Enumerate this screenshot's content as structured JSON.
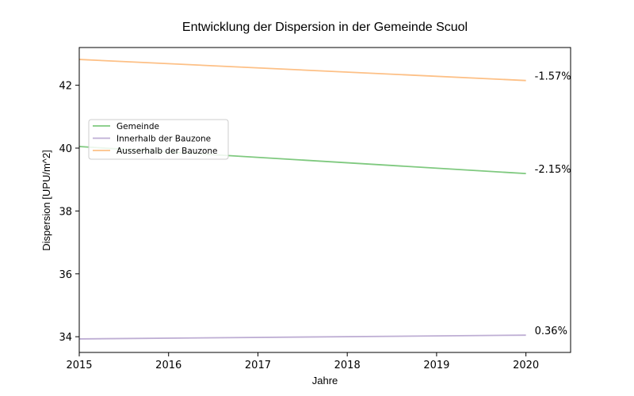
{
  "chart_data": {
    "type": "line",
    "title": "Entwicklung der Dispersion in der Gemeinde Scuol",
    "xlabel": "Jahre",
    "ylabel": "Dispersion [UPU/m^2]",
    "xlim": [
      2015,
      2020.5
    ],
    "ylim": [
      33.5,
      43.2
    ],
    "xticks": [
      2015,
      2016,
      2017,
      2018,
      2019,
      2020
    ],
    "yticks": [
      34,
      36,
      38,
      40,
      42
    ],
    "grid": false,
    "legend_position": "center-left",
    "x": [
      2015,
      2020
    ],
    "series": [
      {
        "name": "Gemeinde",
        "color": "#7fc97f",
        "values": [
          40.05,
          39.19
        ],
        "end_label": "-2.15%"
      },
      {
        "name": "Innerhalb der Bauzone",
        "color": "#beaed4",
        "values": [
          33.93,
          34.05
        ],
        "end_label": "0.36%"
      },
      {
        "name": "Ausserhalb der Bauzone",
        "color": "#fdc086",
        "values": [
          42.82,
          42.15
        ],
        "end_label": "-1.57%"
      }
    ]
  }
}
